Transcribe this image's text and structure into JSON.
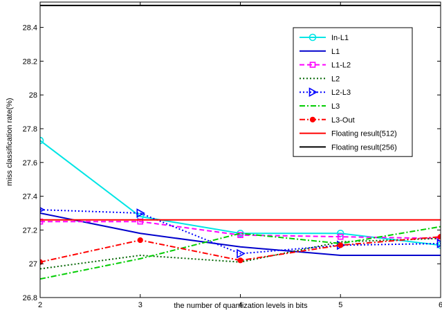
{
  "chart_data": {
    "type": "line",
    "title": "",
    "xlabel": "the number of quantization levels in bits",
    "ylabel": "miss classification rate(%)",
    "xlim": [
      2,
      6
    ],
    "ylim": [
      26.8,
      28.55
    ],
    "xticks": [
      2,
      3,
      4,
      5,
      6
    ],
    "xtick_labels": [
      "2",
      "3",
      "4",
      "5",
      "6"
    ],
    "yticks": [
      26.8,
      27,
      27.2,
      27.4,
      27.6,
      27.8,
      28,
      28.2,
      28.4
    ],
    "ytick_labels": [
      "26.8",
      "27",
      "27.2",
      "27.4",
      "27.6",
      "27.8",
      "28",
      "28.2",
      "28.4"
    ],
    "grid": false,
    "legend_position": "top-right",
    "x": [
      2,
      3,
      4,
      5,
      6
    ],
    "series": [
      {
        "name": "In-L1",
        "values": [
          27.73,
          27.28,
          27.18,
          27.18,
          27.11
        ],
        "color": "#00e5e5",
        "dash": "solid",
        "marker": "circle"
      },
      {
        "name": "L1",
        "values": [
          27.3,
          27.18,
          27.1,
          27.05,
          27.05
        ],
        "color": "#0000cc",
        "dash": "solid",
        "marker": "none"
      },
      {
        "name": "L1-L2",
        "values": [
          27.25,
          27.25,
          27.17,
          27.16,
          27.15
        ],
        "color": "#ff00ff",
        "dash": "dashed",
        "marker": "square"
      },
      {
        "name": "L2",
        "values": [
          26.97,
          27.05,
          27.01,
          27.13,
          27.15
        ],
        "color": "#006400",
        "dash": "dotted",
        "marker": "none"
      },
      {
        "name": "L2-L3",
        "values": [
          27.32,
          27.3,
          27.06,
          27.11,
          27.12
        ],
        "color": "#0000ff",
        "dash": "dotted",
        "marker": "triangle-right"
      },
      {
        "name": "L3",
        "values": [
          26.91,
          27.03,
          27.18,
          27.12,
          27.22
        ],
        "color": "#00cc00",
        "dash": "dashdot",
        "marker": "none"
      },
      {
        "name": "L3-Out",
        "values": [
          27.01,
          27.14,
          27.02,
          27.11,
          27.16
        ],
        "color": "#ff0000",
        "dash": "dashdot",
        "marker": "filled-circle"
      },
      {
        "name": "Floating result(512)",
        "values": [
          27.26,
          27.26,
          27.26,
          27.26,
          27.26
        ],
        "color": "#ff0000",
        "dash": "solid",
        "marker": "none"
      },
      {
        "name": "Floating result(256)",
        "values": [
          28.53,
          28.53,
          28.53,
          28.53,
          28.53
        ],
        "color": "#000000",
        "dash": "solid",
        "marker": "none"
      }
    ]
  }
}
